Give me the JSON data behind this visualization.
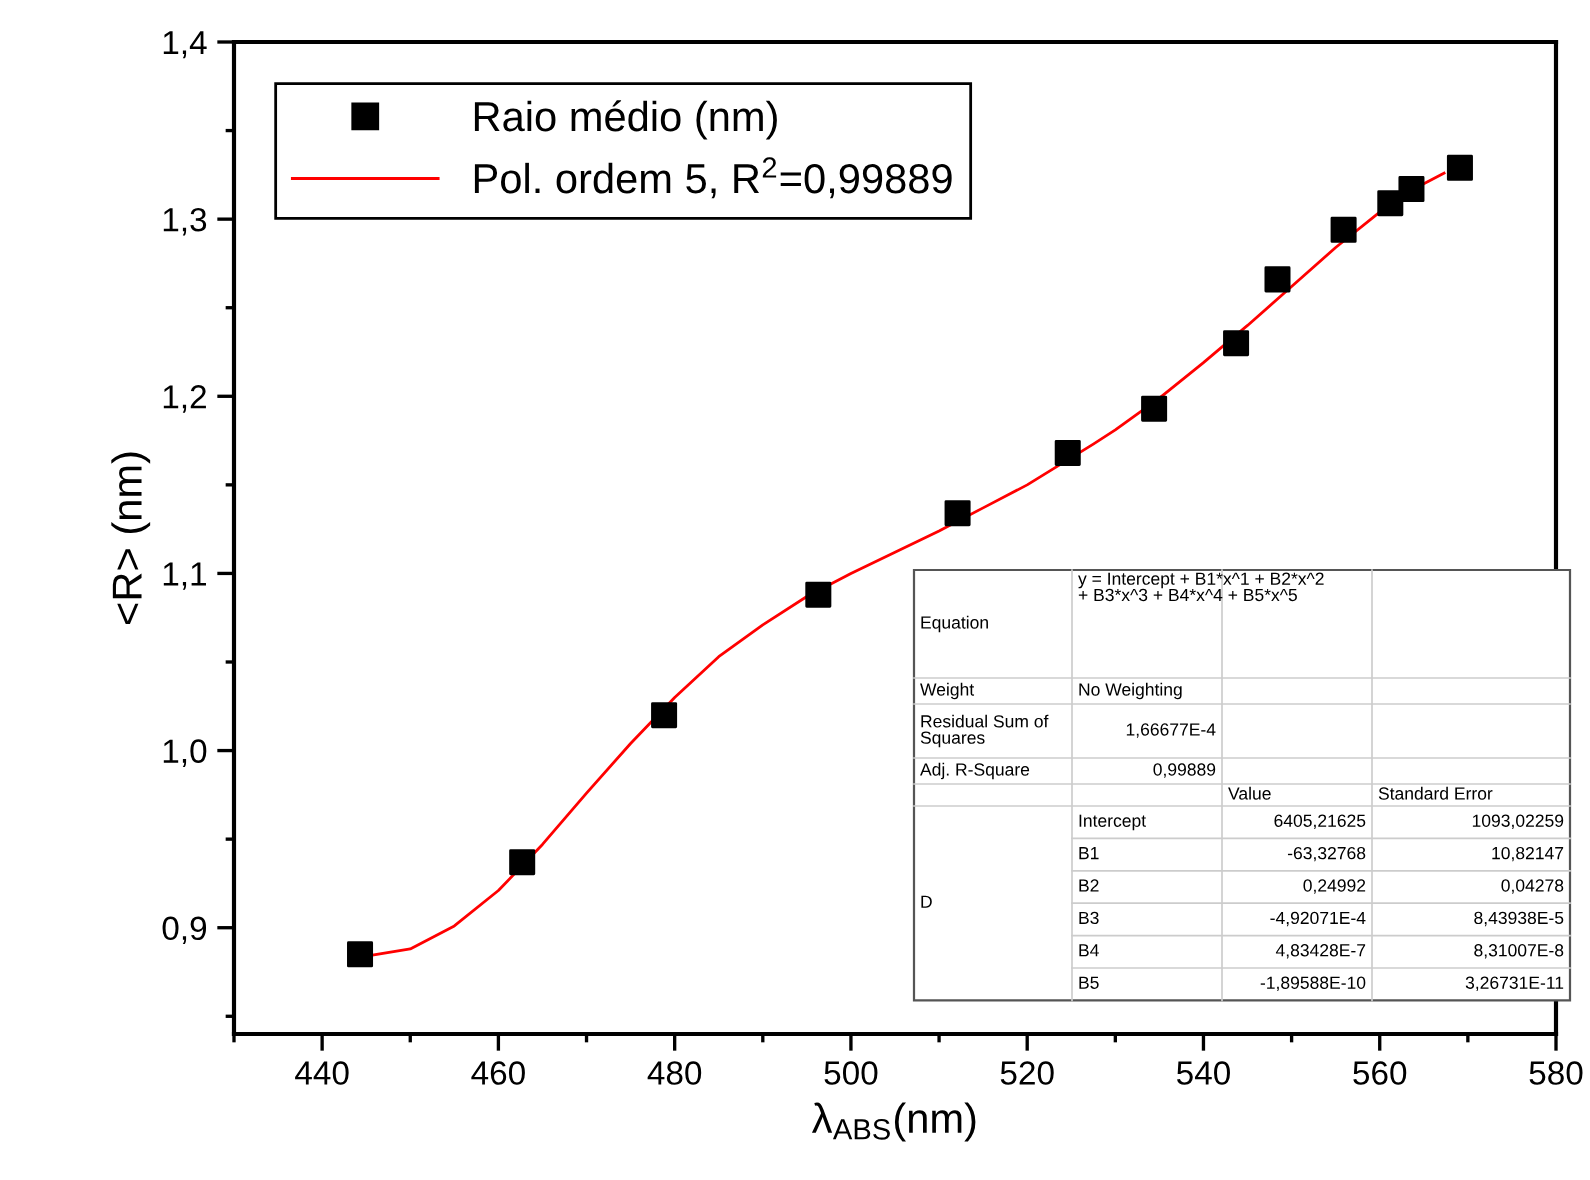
{
  "chart_data": {
    "type": "scatter",
    "xlabel": "λ$_{ABS}$(nm)",
    "ylabel": "<R> (nm)",
    "xlim": [
      430,
      580
    ],
    "ylim": [
      0.84,
      1.4
    ],
    "xticks": [
      440,
      460,
      480,
      500,
      520,
      540,
      560,
      580
    ],
    "yticks": [
      {
        "value": 0.9,
        "label": "0,9"
      },
      {
        "value": 1.0,
        "label": "1,0"
      },
      {
        "value": 1.1,
        "label": "1,1"
      },
      {
        "value": 1.2,
        "label": "1,2"
      },
      {
        "value": 1.3,
        "label": "1,3"
      },
      {
        "value": 1.4,
        "label": "1,4"
      }
    ],
    "grid": false,
    "legend": "top left",
    "series": [
      {
        "name": "Raio médio (nm)",
        "marker": "square",
        "color": "#000000",
        "x": [
          444.3,
          462.7,
          478.8,
          496.3,
          512.1,
          524.6,
          534.4,
          543.7,
          548.4,
          555.9,
          561.2,
          563.6,
          569.1
        ],
        "values": [
          0.885,
          0.937,
          1.02,
          1.088,
          1.134,
          1.168,
          1.193,
          1.23,
          1.266,
          1.294,
          1.309,
          1.317,
          1.329
        ]
      },
      {
        "name": "Pol. ordem 5, R$^{2}$=0,99889",
        "type": "line",
        "marker": "none",
        "line_style": "solid",
        "color": "#ff0000",
        "x": [
          445,
          450,
          455,
          460,
          465,
          470,
          475,
          480,
          485,
          490,
          495,
          500,
          505,
          510,
          515,
          520,
          527.5,
          530,
          535,
          540,
          545,
          550,
          555,
          560,
          565,
          567.3
        ],
        "values": [
          0.884,
          0.888,
          0.901,
          0.921,
          0.947,
          0.976,
          1.004,
          1.03,
          1.053,
          1.071,
          1.087,
          1.1,
          1.112,
          1.124,
          1.137,
          1.15,
          1.173,
          1.181,
          1.199,
          1.219,
          1.24,
          1.262,
          1.284,
          1.304,
          1.32,
          1.326
        ]
      }
    ],
    "annotations": [
      "Equation",
      "y = Intercept + B1*x^1 + B2*x^2\n+ B3*x^3 + B4*x^4 + B5*x^5",
      "Weight",
      "No Weighting",
      "Residual Sum of\nSquares",
      "1,66677E-4",
      "Adj. R-Square",
      "0,99889",
      "Value",
      "Standard Error",
      "D",
      "Intercept",
      "6405,21625",
      "1093,02259",
      "B1",
      "-63,32768",
      "10,82147",
      "B2",
      "0,24992",
      "0,04278",
      "B3",
      "-4,92071E-4",
      "8,43938E-5",
      "B4",
      "4,83428E-7",
      "8,31007E-8",
      "B5",
      "-1,89588E-10",
      "3,26731E-11"
    ]
  }
}
